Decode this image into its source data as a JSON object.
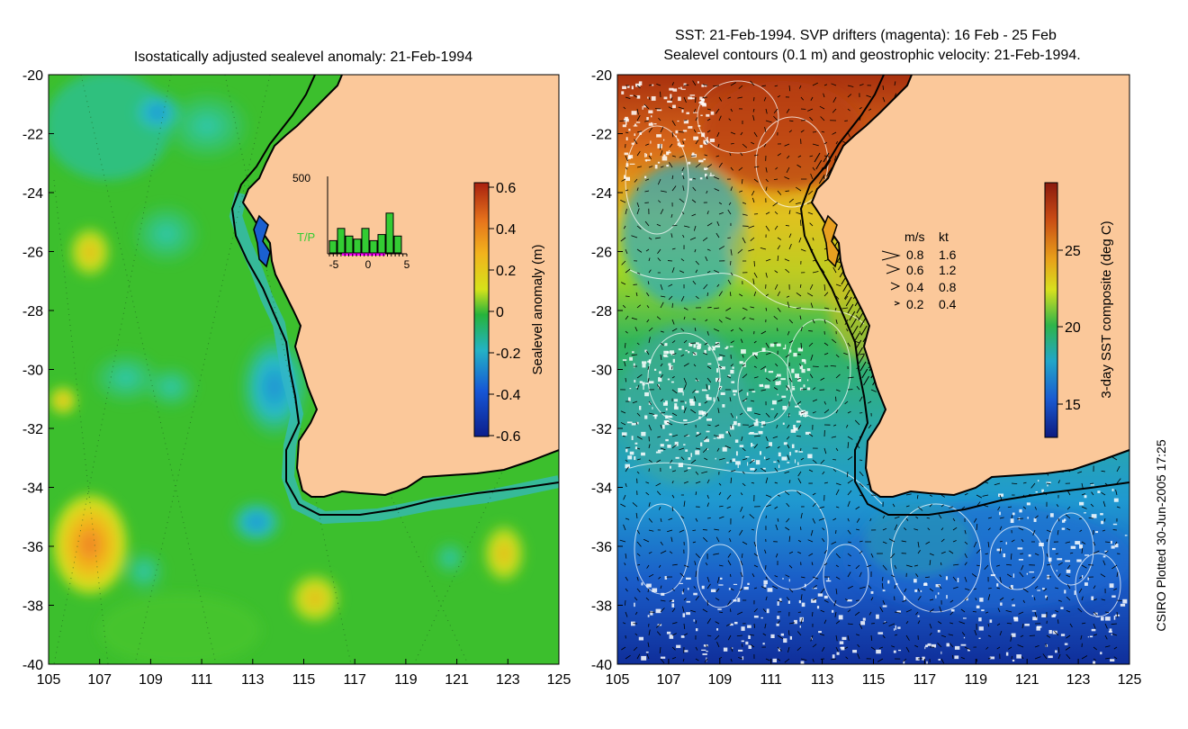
{
  "left_panel": {
    "title": "Isostatically adjusted sealevel anomaly: 21-Feb-1994",
    "colorbar": {
      "label": "Sealevel anomaly (m)",
      "ticks": [
        "0.6",
        "0.4",
        "0.2",
        "0",
        "-0.2",
        "-0.4",
        "-0.6"
      ],
      "colors": [
        "#a8200f",
        "#e6741c",
        "#f2b31c",
        "#d6e21a",
        "#26b33b",
        "#24b2c4",
        "#1657d6",
        "#0c1e8c"
      ]
    },
    "inset_histogram": {
      "series_label": "T/P",
      "ymax_label": "500",
      "x_ticks": [
        "-5",
        "0",
        "5"
      ],
      "bar_values": [
        80,
        160,
        110,
        90,
        160,
        80,
        120,
        260,
        110
      ]
    },
    "colors": {
      "land": "#fbc89a",
      "ocean_base": "#3cbf2d"
    }
  },
  "right_panel": {
    "title_line1": "SST: 21-Feb-1994. SVP drifters (magenta): 16 Feb - 25 Feb",
    "title_line2": "Sealevel contours (0.1 m) and geostrophic velocity: 21-Feb-1994.",
    "colorbar": {
      "label": "3-day SST composite (deg C)",
      "ticks": [
        "25",
        "20",
        "15"
      ],
      "colors": [
        "#8a1a0e",
        "#c84a14",
        "#e8a01a",
        "#d8e01e",
        "#2fb44a",
        "#22a6c8",
        "#1a5ad0",
        "#0c1a80"
      ]
    },
    "velocity_legend": {
      "header_ms": "m/s",
      "header_kt": "kt",
      "rows": [
        {
          "ms": "0.8",
          "kt": "1.6"
        },
        {
          "ms": "0.6",
          "kt": "1.2"
        },
        {
          "ms": "0.4",
          "kt": "0.8"
        },
        {
          "ms": "0.2",
          "kt": "0.4"
        }
      ]
    }
  },
  "axes": {
    "x_ticks": [
      "105",
      "107",
      "109",
      "111",
      "113",
      "115",
      "117",
      "119",
      "121",
      "123",
      "125"
    ],
    "y_ticks": [
      "-20",
      "-22",
      "-24",
      "-26",
      "-28",
      "-30",
      "-32",
      "-34",
      "-36",
      "-38",
      "-40"
    ],
    "lon_range": [
      105,
      125
    ],
    "lat_range": [
      -40,
      -20
    ]
  },
  "credit": "CSIRO Plotted 30-Jun-2005 17:25"
}
